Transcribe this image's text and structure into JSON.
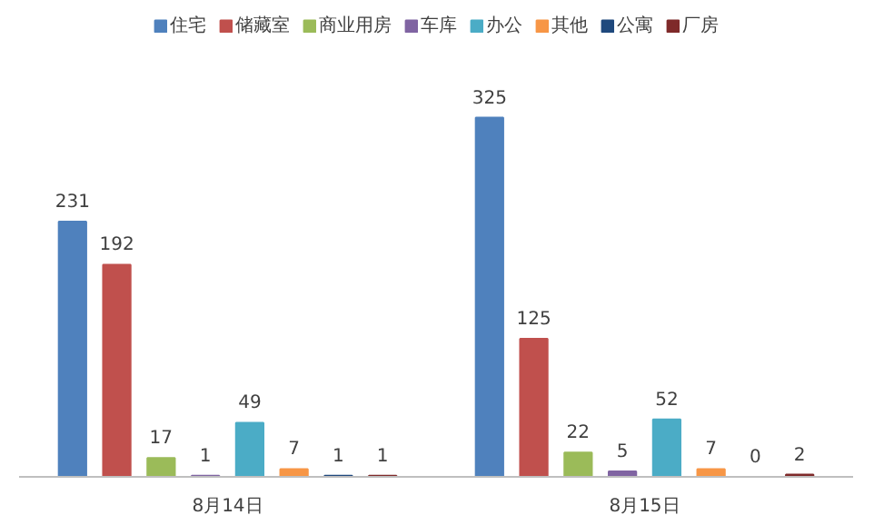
{
  "chart_data": {
    "type": "bar",
    "categories": [
      "8月14日",
      "8月15日"
    ],
    "series": [
      {
        "name": "住宅",
        "color": "#4f81bd",
        "values": [
          231,
          325
        ]
      },
      {
        "name": "储藏室",
        "color": "#c0504d",
        "values": [
          192,
          125
        ]
      },
      {
        "name": "商业用房",
        "color": "#9bbb59",
        "values": [
          17,
          22
        ]
      },
      {
        "name": "车库",
        "color": "#8064a2",
        "values": [
          1,
          5
        ]
      },
      {
        "name": "办公",
        "color": "#4bacc6",
        "values": [
          49,
          52
        ]
      },
      {
        "name": "其他",
        "color": "#f79646",
        "values": [
          7,
          7
        ]
      },
      {
        "name": "公寓",
        "color": "#1f497d",
        "values": [
          1,
          0
        ]
      },
      {
        "name": "厂房",
        "color": "#7f2a2a",
        "values": [
          1,
          2
        ]
      }
    ],
    "data_labels": true,
    "legend": "top",
    "grid": false
  }
}
